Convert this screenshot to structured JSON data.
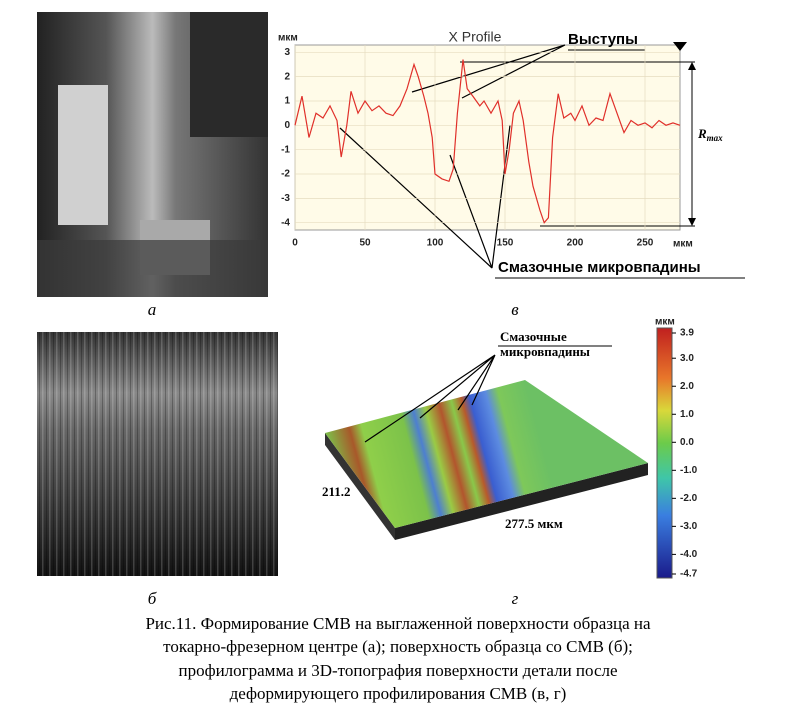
{
  "panels": [
    {
      "label": "а"
    },
    {
      "label": "б"
    },
    {
      "label": "в",
      "chart": {
        "type": "line",
        "title": "X Profile",
        "x_unit": "мкм",
        "y_unit": "мкм",
        "x": [
          0,
          5,
          10,
          15,
          20,
          25,
          30,
          33,
          37,
          40,
          45,
          50,
          55,
          60,
          65,
          70,
          75,
          80,
          85,
          88,
          92,
          95,
          98,
          100,
          105,
          110,
          113,
          116,
          120,
          123,
          127,
          132,
          135,
          140,
          145,
          148,
          150,
          153,
          156,
          160,
          163,
          167,
          170,
          175,
          178,
          181,
          184,
          188,
          192,
          197,
          200,
          205,
          210,
          215,
          220,
          225,
          230,
          235,
          240,
          245,
          250,
          255,
          260,
          265,
          270,
          275
        ],
        "values": [
          0,
          1.2,
          -0.5,
          0.5,
          0.3,
          0.8,
          0.2,
          -1.3,
          0,
          1.4,
          0.5,
          1.0,
          0.6,
          0.8,
          0.5,
          0.4,
          0.8,
          1.5,
          2.5,
          2.0,
          1.2,
          0.5,
          -0.5,
          -2.0,
          -2.2,
          -2.3,
          -1.8,
          0.5,
          2.7,
          1.5,
          1.2,
          0.8,
          1.0,
          0.5,
          1.0,
          0.2,
          -2.0,
          -1.0,
          0.5,
          1.0,
          0.2,
          -1.5,
          -2.5,
          -3.5,
          -4.0,
          -3.8,
          -0.5,
          1.3,
          0.3,
          0.5,
          0.2,
          0.8,
          0.0,
          0.3,
          0.2,
          1.3,
          0.5,
          -0.3,
          0.2,
          0.0,
          0.1,
          -0.1,
          0.2,
          0.0,
          0.1,
          0.0
        ],
        "color": "#e0302a",
        "xlim": [
          0,
          275
        ],
        "ylim": [
          -4.3,
          3.3
        ],
        "xticks": [
          0,
          50,
          100,
          150,
          200,
          250
        ],
        "yticks": [
          3,
          2,
          1,
          0,
          -1,
          -2,
          -3,
          -4
        ],
        "peaks": "Выступы",
        "rmax": "R",
        "rmax_sub": "max",
        "valleys": "Смазочные микровпадины"
      }
    },
    {
      "label": "г",
      "topography": {
        "callout": [
          "Смазочные",
          "микровпадины"
        ],
        "width_label": "211.2",
        "length_label": "277.5 мкм",
        "colorbar": {
          "unit": "мкм",
          "ticks": [
            3.9,
            {
              "value": 3,
              "label": "3.0"
            },
            {
              "value": 2,
              "label": "2.0"
            },
            {
              "value": 1,
              "label": "1.0"
            },
            {
              "value": 0,
              "label": "0.0"
            },
            {
              "value": -1,
              "label": "-1.0"
            },
            {
              "value": -2,
              "label": "-2.0"
            },
            {
              "value": -3,
              "label": "-3.0"
            },
            {
              "value": -4,
              "label": "-4.0"
            },
            -4.7
          ]
        }
      }
    }
  ],
  "caption": [
    "Рис.11. Формирование СМВ на выглаженной поверхности образца на",
    "токарно-фрезерном центре (а); поверхность образца со СМВ (б);",
    "профилограмма и 3D-топография поверхности детали после",
    "деформирующего профилирования СМВ (в, г)"
  ]
}
